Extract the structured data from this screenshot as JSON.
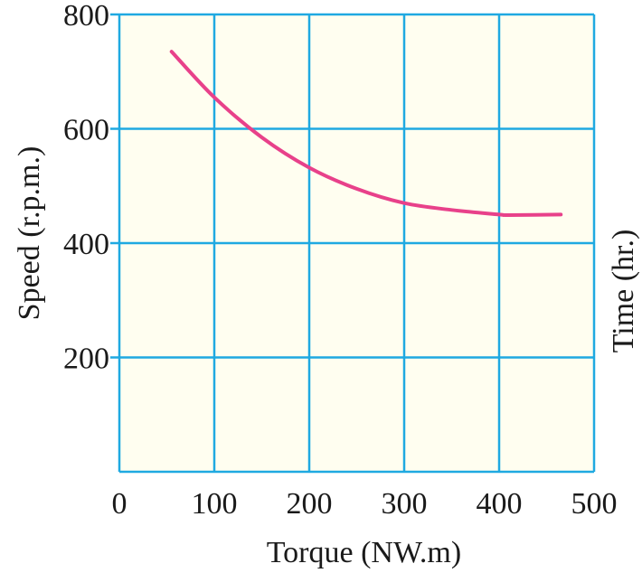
{
  "chart_data": {
    "type": "line",
    "title": "",
    "xlabel": "Torque (NW.m)",
    "ylabel": "Speed (r.p.m.)",
    "y2label": "Time (hr.)",
    "xlim": [
      0,
      500
    ],
    "ylim": [
      0,
      800
    ],
    "x_ticks": [
      0,
      100,
      200,
      300,
      400,
      500
    ],
    "y_ticks": [
      200,
      400,
      600,
      800
    ],
    "grid": true,
    "background_color": "#fffef0",
    "grid_color": "#1fa9e1",
    "series": [
      {
        "color": "#e8418a",
        "x": [
          55,
          100,
          150,
          200,
          250,
          300,
          350,
          400,
          410,
          465
        ],
        "y": [
          735,
          655,
          585,
          532,
          495,
          470,
          458,
          450,
          449,
          450
        ]
      }
    ]
  }
}
